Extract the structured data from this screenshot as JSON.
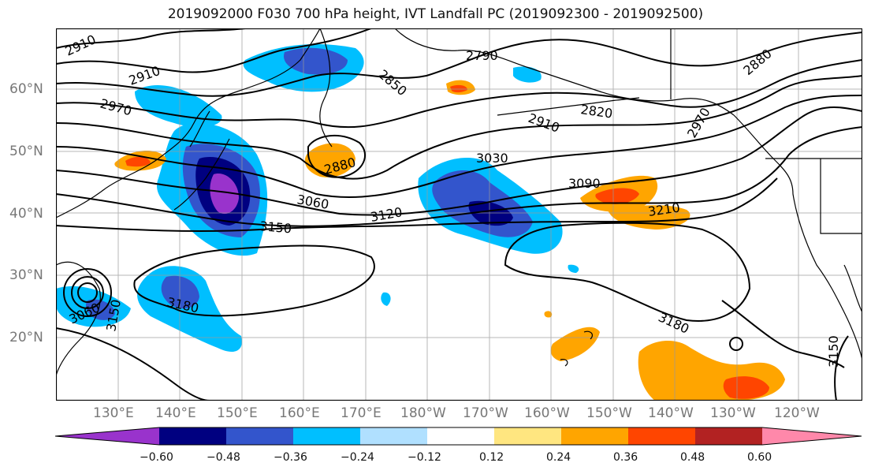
{
  "title": "2019092000 F030 700 hPa height, IVT Landfall PC (2019092300 - 2019092500)",
  "map": {
    "lat_labels": [
      "60°N",
      "50°N",
      "40°N",
      "30°N",
      "20°N"
    ],
    "lon_labels": [
      "130°E",
      "140°E",
      "150°E",
      "160°E",
      "170°E",
      "180°W",
      "170°W",
      "160°W",
      "150°W",
      "140°W",
      "130°W",
      "120°W"
    ],
    "contour_labels": [
      "2910",
      "2910",
      "2970",
      "2790",
      "2850",
      "2820",
      "2880",
      "2880",
      "2910",
      "3030",
      "2970",
      "3090",
      "3060",
      "3120",
      "3150",
      "3210",
      "3180",
      "3180",
      "3060",
      "3150",
      "3150"
    ]
  },
  "colorbar": {
    "colors": [
      "#9933cc",
      "#000080",
      "#3355cc",
      "#00bfff",
      "#b0e0ff",
      "#ffffff",
      "#ffe680",
      "#ffa500",
      "#ff4500",
      "#b22222",
      "#ff88aa"
    ],
    "tick_labels": [
      "−0.60",
      "−0.48",
      "−0.36",
      "−0.24",
      "−0.12",
      "0.12",
      "0.24",
      "0.36",
      "0.48",
      "0.60"
    ]
  }
}
